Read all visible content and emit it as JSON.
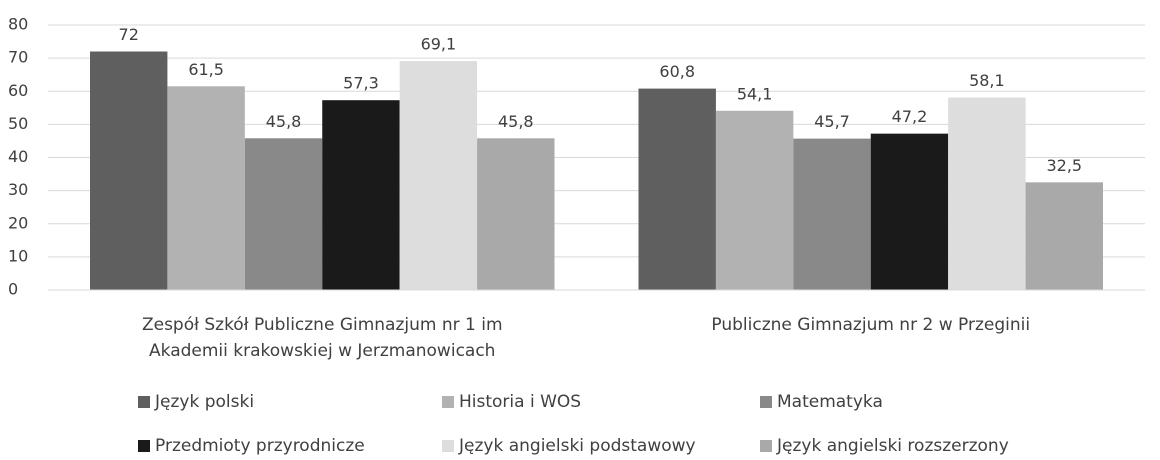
{
  "chart_data": {
    "type": "bar",
    "categories": [
      "Zespół Szkół Publiczne Gimnazjum nr 1 im Akademii krakowskiej w Jerzmanowicach",
      "Publiczne Gimnazjum nr 2 w Przeginii"
    ],
    "series": [
      {
        "name": "Język polski",
        "color": "#5f5f5f",
        "values": [
          72,
          60.8
        ],
        "value_labels": [
          "72",
          "60,8"
        ]
      },
      {
        "name": "Historia i WOS",
        "color": "#b2b2b2",
        "values": [
          61.5,
          54.1
        ],
        "value_labels": [
          "61,5",
          "54,1"
        ]
      },
      {
        "name": "Matematyka",
        "color": "#898989",
        "values": [
          45.8,
          45.7
        ],
        "value_labels": [
          "45,8",
          "45,7"
        ]
      },
      {
        "name": "Przedmioty przyrodnicze",
        "color": "#1a1a1a",
        "values": [
          57.3,
          47.2
        ],
        "value_labels": [
          "57,3",
          "47,2"
        ]
      },
      {
        "name": "Język angielski podstawowy",
        "color": "#dddddd",
        "values": [
          69.1,
          58.1
        ],
        "value_labels": [
          "69,1",
          "58,1"
        ]
      },
      {
        "name": "Język angielski rozszerzony",
        "color": "#a9a9a9",
        "values": [
          45.8,
          32.5
        ],
        "value_labels": [
          "45,8",
          "32,5"
        ]
      }
    ],
    "ylim": [
      0,
      80
    ],
    "yticks": [
      0,
      10,
      20,
      30,
      40,
      50,
      60,
      70,
      80
    ],
    "grid": true
  }
}
